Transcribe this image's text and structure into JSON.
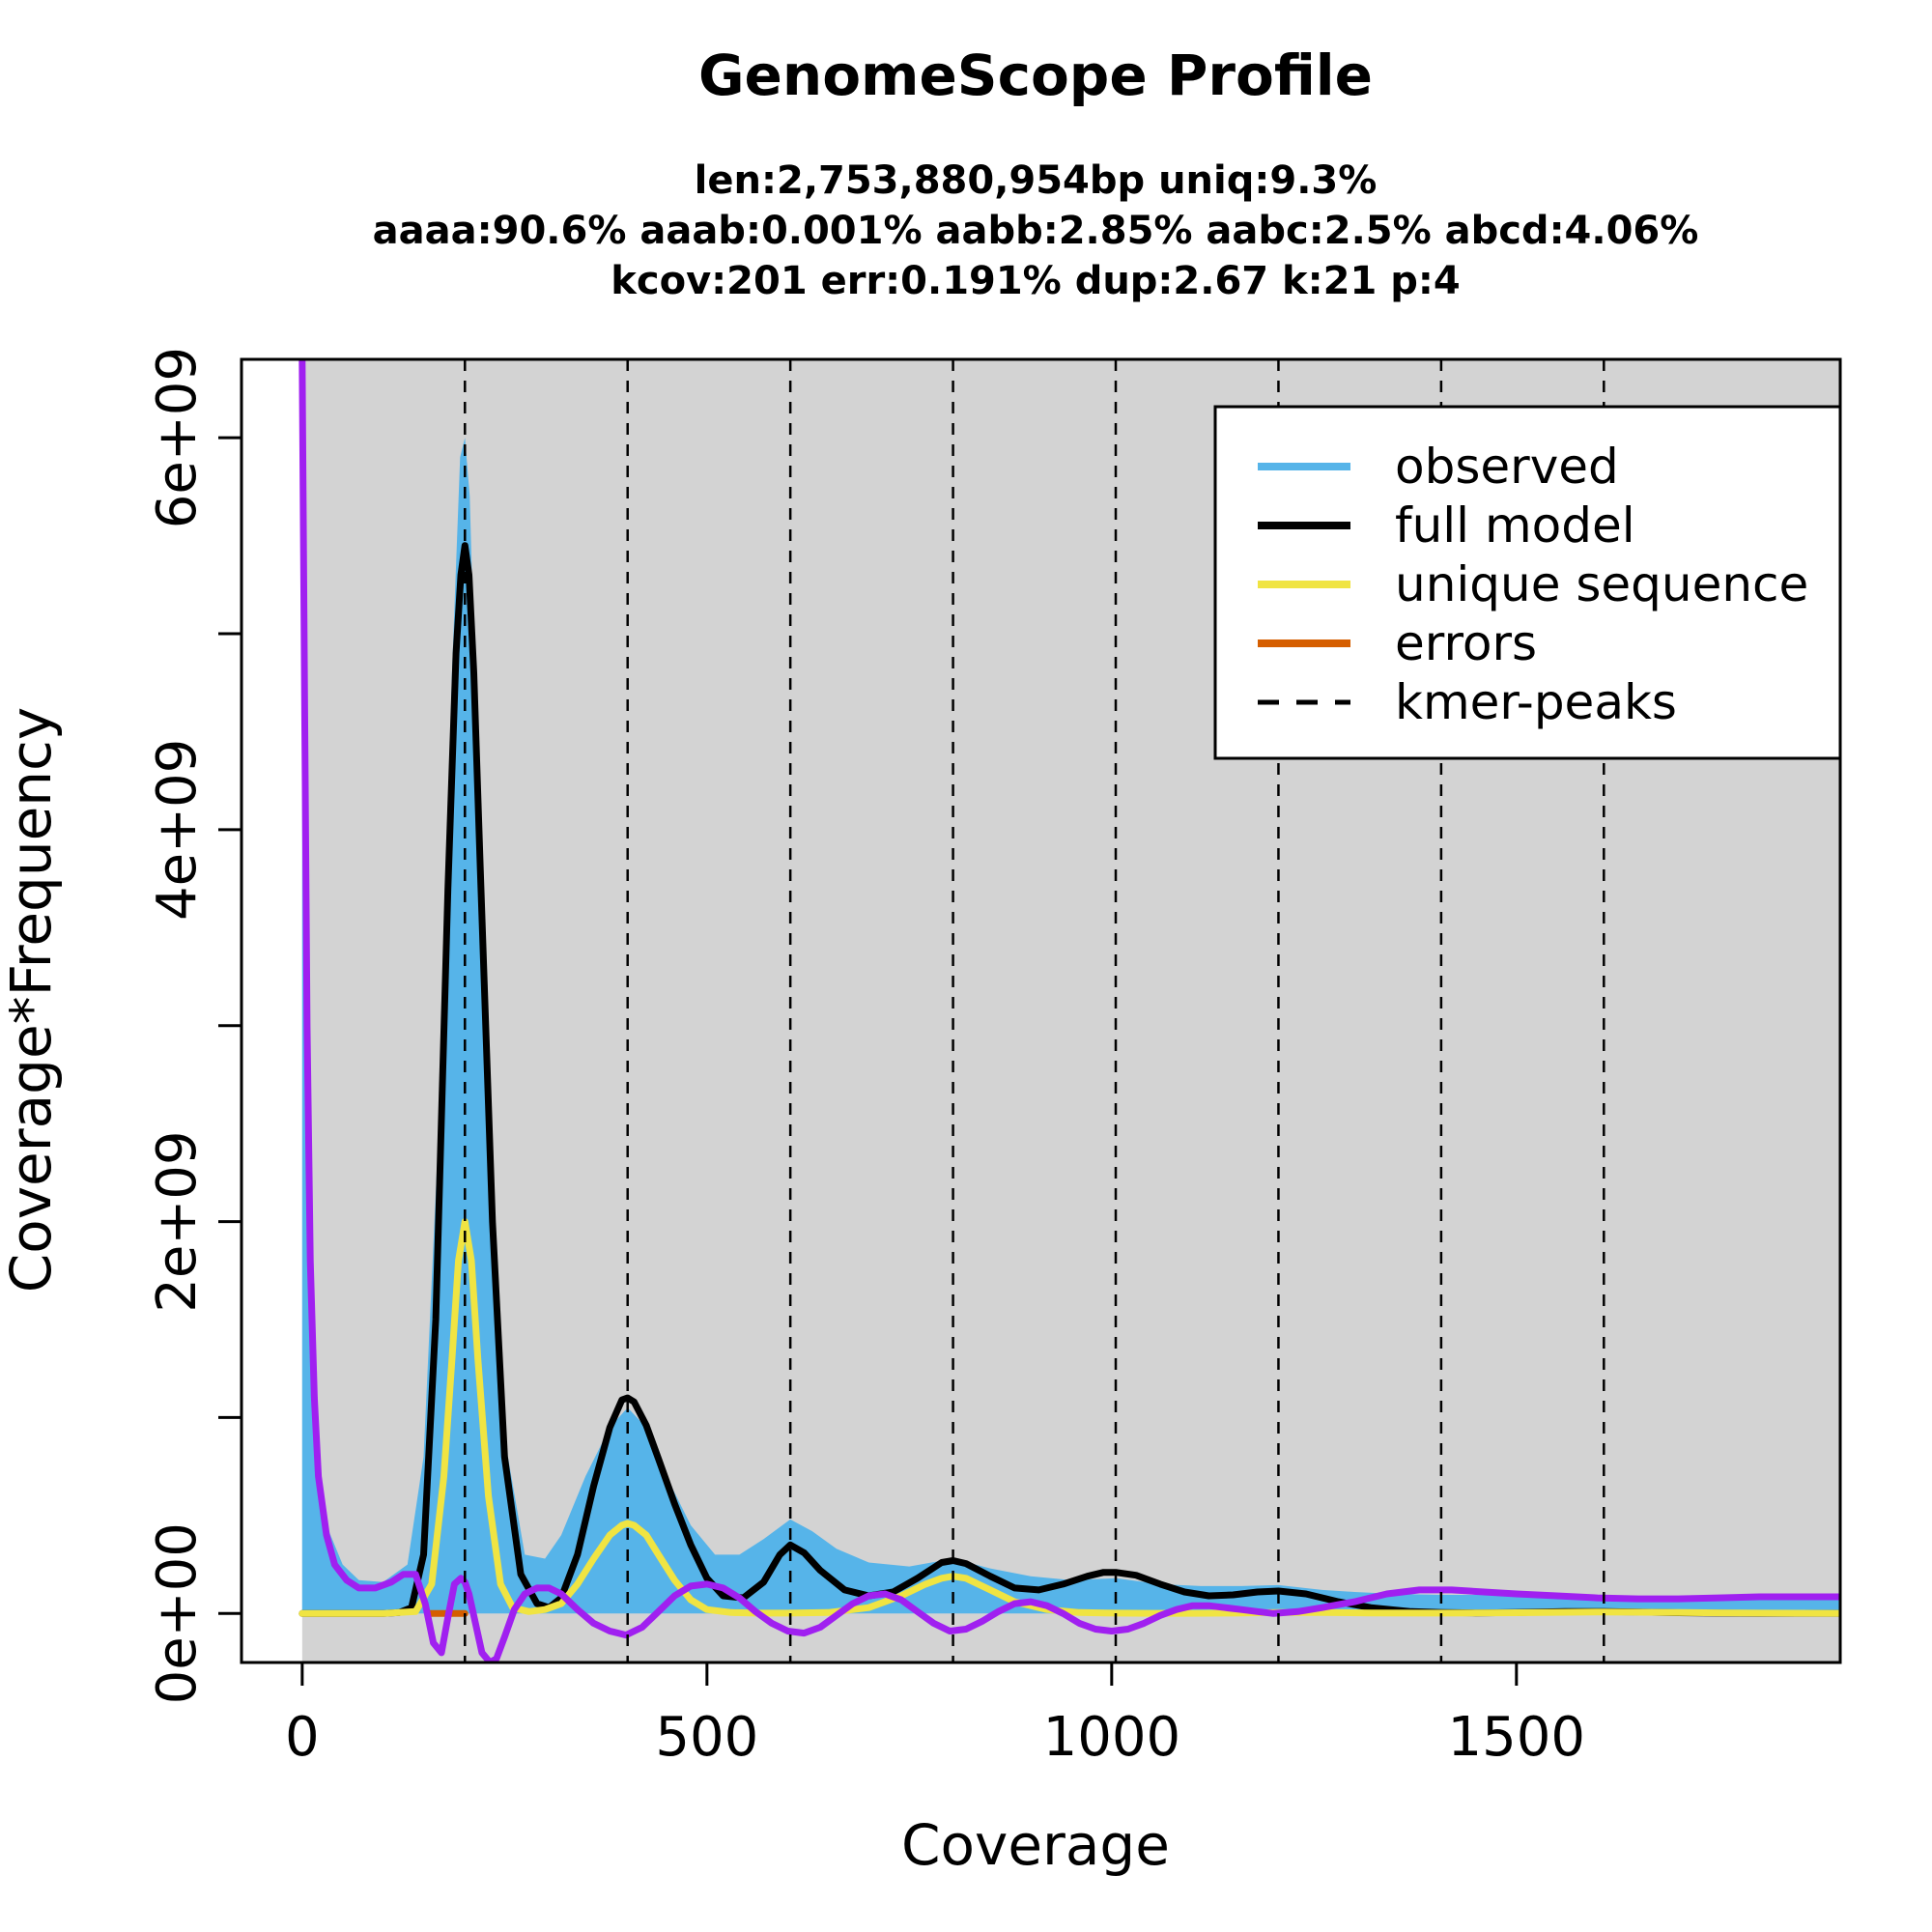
{
  "chart_data": {
    "type": "area",
    "title": "GenomeScope Profile",
    "subtitle_lines": [
      "len:2,753,880,954bp uniq:9.3%",
      "aaaa:90.6% aaab:0.001% aabb:2.85% aabc:2.5% abcd:4.06%",
      "kcov:201 err:0.191%  dup:2.67  k:21 p:4"
    ],
    "xlabel": "Coverage",
    "ylabel": "Coverage*Frequency",
    "xlim": [
      -75,
      1900
    ],
    "ylim": [
      -250000000,
      6400000000
    ],
    "x_ticks": [
      0,
      500,
      1000,
      1500
    ],
    "x_tick_labels": [
      "0",
      "500",
      "1000",
      "1500"
    ],
    "y_ticks": [
      0,
      1000000000,
      2000000000,
      3000000000,
      4000000000,
      5000000000,
      6000000000
    ],
    "y_tick_labels": [
      "0e+00",
      "",
      "2e+09",
      "",
      "4e+09",
      "",
      "6e+09"
    ],
    "grid": false,
    "background_color": "#d3d3d3",
    "kmer_peaks": [
      201,
      402,
      603,
      804,
      1005,
      1206,
      1407,
      1608
    ],
    "legend_position": "top-right",
    "legend": [
      {
        "label": "observed",
        "color": "#56b4e9",
        "style": "solid"
      },
      {
        "label": "full model",
        "color": "#000000",
        "style": "solid"
      },
      {
        "label": "unique sequence",
        "color": "#f0e442",
        "style": "solid"
      },
      {
        "label": "errors",
        "color": "#d55e00",
        "style": "solid"
      },
      {
        "label": "kmer-peaks",
        "color": "#000000",
        "style": "dashed"
      }
    ],
    "series": [
      {
        "name": "observed",
        "color": "#56b4e9",
        "kind": "filled-area",
        "x": [
          0,
          5,
          10,
          20,
          30,
          50,
          70,
          100,
          130,
          150,
          170,
          185,
          195,
          201,
          207,
          215,
          230,
          250,
          275,
          300,
          320,
          350,
          380,
          402,
          425,
          450,
          480,
          510,
          540,
          570,
          603,
          630,
          660,
          700,
          750,
          804,
          850,
          900,
          950,
          1005,
          1060,
          1110,
          1160,
          1206,
          1260,
          1300,
          1350,
          1407,
          1450,
          1500,
          1550,
          1608,
          1650,
          1700,
          1750,
          1800,
          1850,
          1900
        ],
        "y": [
          6400000000,
          3000000000,
          1500000000,
          700000000,
          450000000,
          250000000,
          170000000,
          160000000,
          250000000,
          800000000,
          2600000000,
          4800000000,
          5900000000,
          6000000000,
          5700000000,
          4500000000,
          2500000000,
          900000000,
          300000000,
          280000000,
          400000000,
          700000000,
          950000000,
          1050000000,
          950000000,
          700000000,
          450000000,
          300000000,
          300000000,
          380000000,
          480000000,
          420000000,
          330000000,
          260000000,
          240000000,
          280000000,
          230000000,
          190000000,
          170000000,
          180000000,
          150000000,
          140000000,
          140000000,
          145000000,
          120000000,
          110000000,
          100000000,
          95000000,
          95000000,
          93000000,
          90000000,
          90000000,
          90000000,
          88000000,
          87000000,
          85000000,
          85000000,
          85000000
        ]
      },
      {
        "name": "full model",
        "color": "#000000",
        "kind": "line",
        "x": [
          0,
          70,
          100,
          120,
          135,
          150,
          165,
          180,
          190,
          196,
          201,
          206,
          212,
          220,
          235,
          250,
          270,
          290,
          305,
          320,
          340,
          360,
          380,
          395,
          402,
          410,
          425,
          440,
          460,
          480,
          500,
          520,
          545,
          570,
          590,
          603,
          620,
          640,
          670,
          700,
          730,
          760,
          790,
          804,
          820,
          850,
          880,
          910,
          940,
          970,
          990,
          1005,
          1030,
          1060,
          1090,
          1120,
          1150,
          1180,
          1206,
          1240,
          1280,
          1320,
          1370,
          1407,
          1450,
          1500,
          1560,
          1608,
          1650,
          1700,
          1750,
          1800,
          1850,
          1900
        ],
        "y": [
          0,
          0,
          0,
          5000000,
          30000000,
          300000000,
          1500000000,
          3700000000,
          4900000000,
          5300000000,
          5450000000,
          5300000000,
          4800000000,
          3800000000,
          2000000000,
          800000000,
          200000000,
          50000000,
          30000000,
          80000000,
          300000000,
          650000000,
          950000000,
          1090000000,
          1100000000,
          1080000000,
          960000000,
          790000000,
          560000000,
          350000000,
          180000000,
          90000000,
          80000000,
          160000000,
          300000000,
          350000000,
          310000000,
          220000000,
          120000000,
          90000000,
          110000000,
          180000000,
          260000000,
          270000000,
          255000000,
          190000000,
          130000000,
          120000000,
          150000000,
          190000000,
          210000000,
          210000000,
          195000000,
          150000000,
          110000000,
          90000000,
          95000000,
          110000000,
          115000000,
          100000000,
          60000000,
          30000000,
          10000000,
          5000000,
          3000000,
          5000000,
          10000000,
          10000000,
          8000000,
          4000000,
          2000000,
          1000000,
          1000000,
          1000000
        ]
      },
      {
        "name": "unique sequence",
        "color": "#f0e442",
        "kind": "line",
        "x": [
          0,
          100,
          140,
          160,
          175,
          185,
          193,
          201,
          209,
          217,
          230,
          245,
          260,
          280,
          300,
          320,
          340,
          360,
          380,
          395,
          402,
          410,
          425,
          440,
          460,
          480,
          500,
          530,
          560,
          600,
          650,
          700,
          740,
          770,
          790,
          804,
          820,
          850,
          880,
          920,
          960,
          1005,
          1050,
          1100,
          1150,
          1206,
          1260,
          1320,
          1400,
          1500,
          1608,
          1700,
          1800,
          1900
        ],
        "y": [
          0,
          0,
          10000000,
          150000000,
          700000000,
          1300000000,
          1800000000,
          2000000000,
          1800000000,
          1300000000,
          600000000,
          150000000,
          30000000,
          10000000,
          20000000,
          50000000,
          150000000,
          280000000,
          400000000,
          450000000,
          460000000,
          450000000,
          400000000,
          300000000,
          170000000,
          70000000,
          20000000,
          5000000,
          2000000,
          2000000,
          5000000,
          30000000,
          90000000,
          150000000,
          180000000,
          190000000,
          180000000,
          120000000,
          60000000,
          20000000,
          5000000,
          2000000,
          1000000,
          1000000,
          2000000,
          5000000,
          5000000,
          3000000,
          2000000,
          4000000,
          8000000,
          5000000,
          2000000,
          1000000
        ]
      },
      {
        "name": "errors",
        "color": "#d55e00",
        "kind": "line",
        "x": [
          155,
          170,
          185,
          195,
          201
        ],
        "y": [
          0,
          0,
          0,
          0,
          0
        ]
      },
      {
        "name": "",
        "color": "#a020f0",
        "kind": "line",
        "x": [
          0,
          3,
          6,
          10,
          15,
          20,
          30,
          40,
          55,
          70,
          90,
          110,
          125,
          140,
          152,
          162,
          172,
          180,
          188,
          196,
          201,
          206,
          214,
          222,
          232,
          240,
          250,
          262,
          275,
          290,
          305,
          320,
          340,
          360,
          380,
          400,
          420,
          440,
          460,
          480,
          500,
          520,
          540,
          560,
          580,
          600,
          620,
          640,
          660,
          680,
          700,
          720,
          740,
          760,
          780,
          800,
          820,
          840,
          860,
          880,
          900,
          920,
          940,
          960,
          980,
          1000,
          1020,
          1040,
          1060,
          1080,
          1100,
          1120,
          1140,
          1160,
          1180,
          1200,
          1230,
          1260,
          1300,
          1340,
          1380,
          1420,
          1460,
          1500,
          1550,
          1600,
          1650,
          1700,
          1750,
          1800,
          1850,
          1900
        ],
        "y": [
          6400000000,
          4600000000,
          3000000000,
          1800000000,
          1100000000,
          700000000,
          400000000,
          250000000,
          170000000,
          130000000,
          130000000,
          160000000,
          200000000,
          200000000,
          50000000,
          -150000000,
          -200000000,
          -20000000,
          150000000,
          180000000,
          160000000,
          100000000,
          -50000000,
          -200000000,
          -250000000,
          -230000000,
          -120000000,
          20000000,
          100000000,
          130000000,
          130000000,
          100000000,
          20000000,
          -50000000,
          -90000000,
          -110000000,
          -70000000,
          10000000,
          90000000,
          140000000,
          150000000,
          130000000,
          80000000,
          10000000,
          -50000000,
          -90000000,
          -100000000,
          -70000000,
          -10000000,
          50000000,
          90000000,
          100000000,
          70000000,
          10000000,
          -50000000,
          -90000000,
          -80000000,
          -40000000,
          10000000,
          50000000,
          60000000,
          40000000,
          0,
          -50000000,
          -80000000,
          -90000000,
          -80000000,
          -50000000,
          -10000000,
          20000000,
          40000000,
          40000000,
          30000000,
          20000000,
          10000000,
          0,
          10000000,
          30000000,
          60000000,
          100000000,
          120000000,
          120000000,
          110000000,
          100000000,
          90000000,
          80000000,
          75000000,
          75000000,
          80000000,
          85000000,
          85000000,
          85000000
        ]
      }
    ]
  }
}
